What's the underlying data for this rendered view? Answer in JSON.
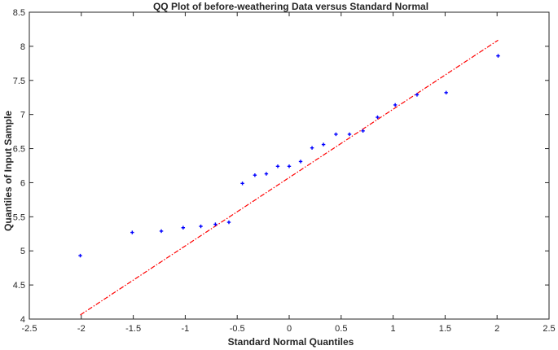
{
  "chart_data": {
    "type": "scatter",
    "title": "QQ Plot of before-weathering Data versus Standard Normal",
    "xlabel": "Standard Normal Quantiles",
    "ylabel": "Quantiles of Input Sample",
    "xlim": [
      -2.5,
      2.5
    ],
    "ylim": [
      4,
      8.5
    ],
    "xticks": [
      "-2.5",
      "-2",
      "-1.5",
      "-1",
      "-0.5",
      "0",
      "0.5",
      "1",
      "1.5",
      "2",
      "2.5"
    ],
    "yticks": [
      "4",
      "4.5",
      "5",
      "5.5",
      "6",
      "6.5",
      "7",
      "7.5",
      "8",
      "8.5"
    ],
    "grid": false,
    "colors": {
      "points": "#0000ff",
      "reference_line": "#ff0000",
      "axes": "#262626"
    },
    "points": [
      {
        "x": -2.01,
        "y": 4.93
      },
      {
        "x": -1.51,
        "y": 5.27
      },
      {
        "x": -1.23,
        "y": 5.29
      },
      {
        "x": -1.02,
        "y": 5.34
      },
      {
        "x": -0.85,
        "y": 5.36
      },
      {
        "x": -0.71,
        "y": 5.39
      },
      {
        "x": -0.58,
        "y": 5.42
      },
      {
        "x": -0.45,
        "y": 5.99
      },
      {
        "x": -0.33,
        "y": 6.11
      },
      {
        "x": -0.22,
        "y": 6.13
      },
      {
        "x": -0.11,
        "y": 6.24
      },
      {
        "x": 0.0,
        "y": 6.24
      },
      {
        "x": 0.11,
        "y": 6.31
      },
      {
        "x": 0.22,
        "y": 6.51
      },
      {
        "x": 0.33,
        "y": 6.56
      },
      {
        "x": 0.45,
        "y": 6.71
      },
      {
        "x": 0.58,
        "y": 6.71
      },
      {
        "x": 0.71,
        "y": 6.76
      },
      {
        "x": 0.85,
        "y": 6.96
      },
      {
        "x": 1.02,
        "y": 7.14
      },
      {
        "x": 1.23,
        "y": 7.29
      },
      {
        "x": 1.51,
        "y": 7.32
      },
      {
        "x": 2.01,
        "y": 7.86
      }
    ],
    "reference_line": {
      "x": [
        -2.01,
        2.01
      ],
      "y": [
        4.06,
        8.09
      ],
      "style": "dash-dot"
    }
  }
}
